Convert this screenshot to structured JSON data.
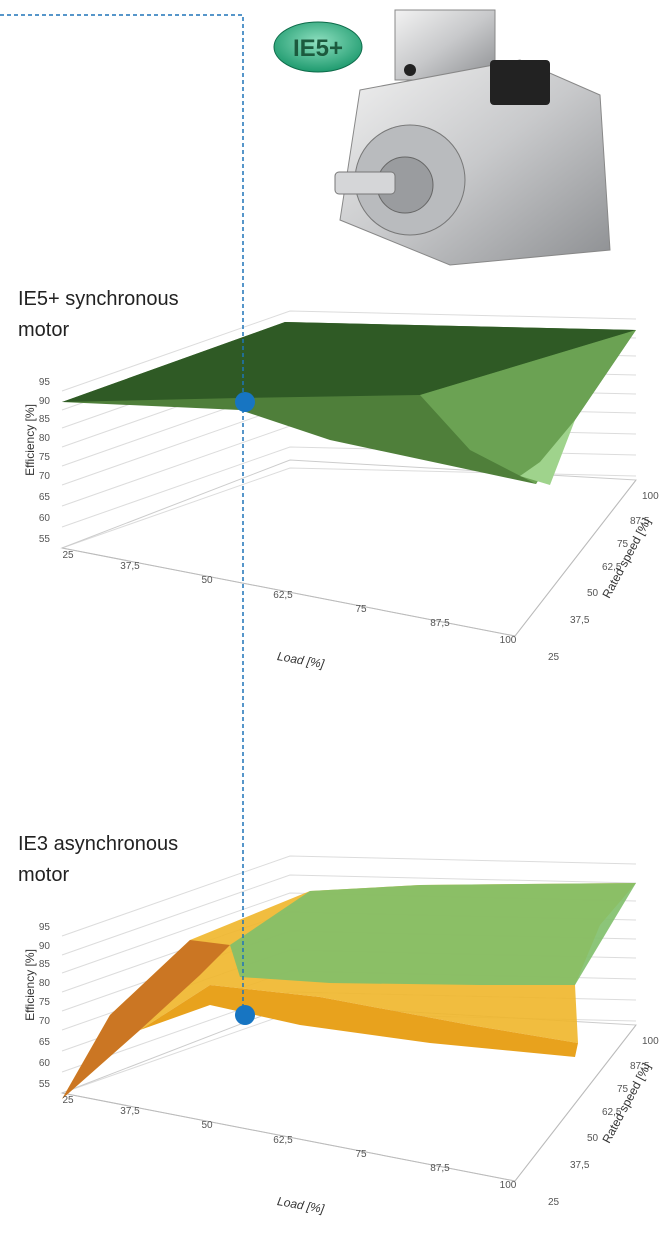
{
  "badge": "IE5+",
  "panels": [
    {
      "title_lines": [
        "IE5+ synchronous",
        "motor"
      ],
      "z_label": "Efficiency [%]",
      "z_ticks": [
        "95",
        "90",
        "85",
        "80",
        "75",
        "70",
        "65",
        "60",
        "55"
      ],
      "x_label": "Load [%]",
      "x_ticks": [
        "25",
        "37,5",
        "50",
        "62,5",
        "75",
        "87,5",
        "100"
      ],
      "y_label": "Rated speed [%]",
      "y_ticks": [
        "100",
        "87,5",
        "75",
        "62,5",
        "50",
        "37,5",
        "25"
      ]
    },
    {
      "title_lines": [
        "IE3 asynchronous",
        "motor"
      ],
      "z_label": "Efficiency [%]",
      "z_ticks": [
        "95",
        "90",
        "85",
        "80",
        "75",
        "70",
        "65",
        "60",
        "55"
      ],
      "x_label": "Load [%]",
      "x_ticks": [
        "25",
        "37,5",
        "50",
        "62,5",
        "75",
        "87,5",
        "100"
      ],
      "y_label": "Rated speed [%]",
      "y_ticks": [
        "100",
        "87,5",
        "75",
        "62,5",
        "50",
        "37,5",
        "25"
      ]
    }
  ]
}
